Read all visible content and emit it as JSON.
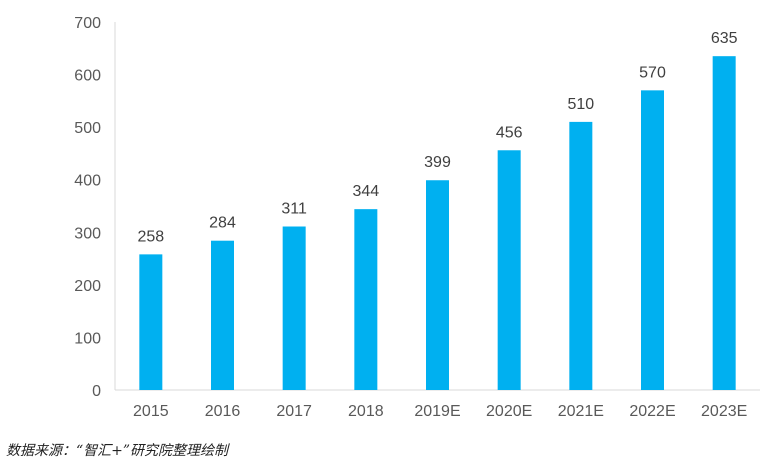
{
  "chart_data": {
    "type": "bar",
    "categories": [
      "2015",
      "2016",
      "2017",
      "2018",
      "2019E",
      "2020E",
      "2021E",
      "2022E",
      "2023E"
    ],
    "values": [
      258,
      284,
      311,
      344,
      399,
      456,
      510,
      570,
      635
    ],
    "data_labels": [
      "258",
      "284",
      "311",
      "344",
      "399",
      "456",
      "510",
      "570",
      "635"
    ],
    "y_ticks": [
      "0",
      "100",
      "200",
      "300",
      "400",
      "500",
      "600",
      "700"
    ],
    "ylim": [
      0,
      700
    ],
    "grid": false,
    "legend": "none",
    "bar_color": "#00b0f0",
    "axis_color": "#d9d9d9",
    "title": "",
    "xlabel": "",
    "ylabel": ""
  },
  "footer": {
    "source": "数据来源：“智汇+”研究院整理绘制"
  }
}
